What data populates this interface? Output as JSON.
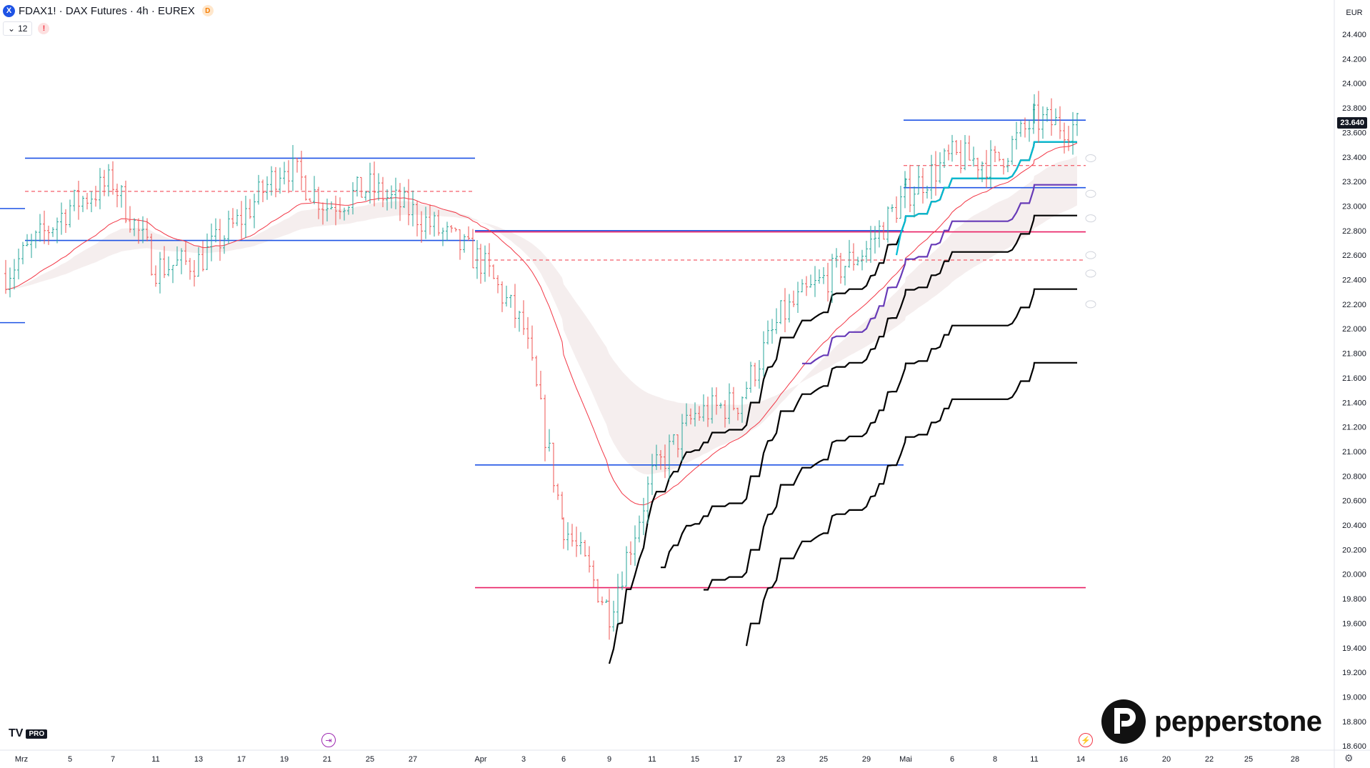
{
  "header": {
    "symbol_icon": "X",
    "title": "FDAX1! · DAX Futures · 4h · EUREX",
    "badge": "D",
    "indicator_value": "12",
    "chevron_icon": "chevron-down-icon",
    "warning": "!"
  },
  "axis": {
    "currency": "EUR",
    "last_price": "23.640"
  },
  "branding": {
    "tv_logo": "TV",
    "tv_badge": "PRO",
    "broker": "pepperstone"
  },
  "colors": {
    "up": "#26a69a",
    "down": "#ef5350",
    "blue_line": "#1e53e5",
    "pink_line": "#e91e63",
    "ema": "#f23645",
    "cyan": "#00bcd4",
    "purple": "#673ab7",
    "black": "#000000"
  },
  "chart_data": {
    "type": "candlestick",
    "y_ticks": [
      "24.400",
      "24.200",
      "24.000",
      "23.800",
      "23.600",
      "23.400",
      "23.200",
      "23.000",
      "22.800",
      "22.600",
      "22.400",
      "22.200",
      "22.000",
      "21.800",
      "21.600",
      "21.400",
      "21.200",
      "21.000",
      "20.800",
      "20.600",
      "20.400",
      "20.200",
      "20.000",
      "19.800",
      "19.600",
      "19.400",
      "19.200",
      "19.000",
      "18.800",
      "18.600"
    ],
    "ylim": [
      18600,
      24400
    ],
    "x_ticks": [
      "Mrz",
      "5",
      "7",
      "11",
      "13",
      "17",
      "19",
      "21",
      "25",
      "27",
      "Apr",
      "3",
      "6",
      "9",
      "11",
      "15",
      "17",
      "23",
      "25",
      "29",
      "Mai",
      "6",
      "8",
      "11",
      "14",
      "16",
      "20",
      "22",
      "25",
      "28"
    ],
    "current_price": 23640,
    "horizontal_levels": [
      {
        "price": 23390,
        "color": "blue",
        "style": "solid"
      },
      {
        "price": 23120,
        "color": "red",
        "style": "dashed"
      },
      {
        "price": 22720,
        "color": "blue",
        "style": "solid"
      },
      {
        "price": 22800,
        "color": "blue",
        "style": "solid"
      },
      {
        "price": 22790,
        "color": "pink",
        "style": "solid"
      },
      {
        "price": 22560,
        "color": "red",
        "style": "dashed"
      },
      {
        "price": 20890,
        "color": "blue",
        "style": "solid"
      },
      {
        "price": 19890,
        "color": "pink",
        "style": "solid"
      },
      {
        "price": 23700,
        "color": "blue",
        "style": "solid"
      },
      {
        "price": 23330,
        "color": "red",
        "style": "dashed"
      },
      {
        "price": 23150,
        "color": "blue",
        "style": "solid"
      },
      {
        "price": 22980,
        "color": "blue",
        "style": "solid"
      },
      {
        "price": 22050,
        "color": "blue",
        "style": "solid"
      }
    ],
    "price_path": [
      {
        "x": "Mrz",
        "y": 22450
      },
      {
        "x": "5",
        "y": 23000
      },
      {
        "x": "7",
        "y": 23200
      },
      {
        "x": "11",
        "y": 22500
      },
      {
        "x": "13",
        "y": 22550
      },
      {
        "x": "17",
        "y": 22900
      },
      {
        "x": "19",
        "y": 23350
      },
      {
        "x": "21",
        "y": 23000
      },
      {
        "x": "25",
        "y": 23150
      },
      {
        "x": "27",
        "y": 22950
      },
      {
        "x": "Apr",
        "y": 22550
      },
      {
        "x": "3",
        "y": 22000
      },
      {
        "x": "6",
        "y": 20400
      },
      {
        "x": "9",
        "y": 19700
      },
      {
        "x": "11",
        "y": 20800
      },
      {
        "x": "15",
        "y": 21300
      },
      {
        "x": "17",
        "y": 21400
      },
      {
        "x": "23",
        "y": 22100
      },
      {
        "x": "25",
        "y": 22400
      },
      {
        "x": "29",
        "y": 22650
      },
      {
        "x": "Mai",
        "y": 23100
      },
      {
        "x": "6",
        "y": 23400
      },
      {
        "x": "8",
        "y": 23350
      },
      {
        "x": "11",
        "y": 23700
      },
      {
        "x": "14",
        "y": 23640
      }
    ],
    "low": 19000,
    "high": 24000
  }
}
